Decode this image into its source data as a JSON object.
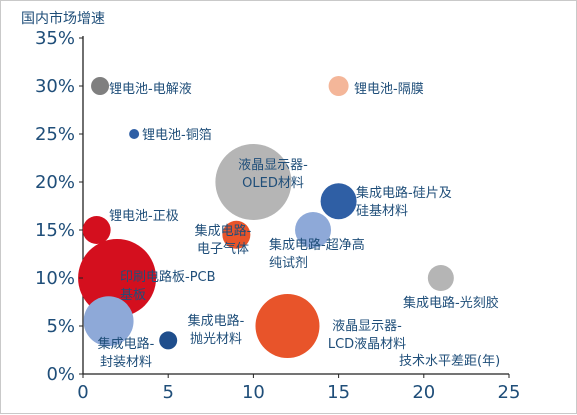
{
  "chart_data": {
    "type": "scatter",
    "title": "",
    "xlabel": "技术水平差距(年)",
    "ylabel": "国内市场增速",
    "xlim": [
      0,
      25
    ],
    "ylim": [
      0,
      35
    ],
    "x_ticks": [
      "0",
      "5",
      "10",
      "15",
      "20",
      "25"
    ],
    "y_ticks": [
      "0%",
      "5%",
      "10%",
      "15%",
      "20%",
      "25%",
      "30%",
      "35%"
    ],
    "grid": false,
    "legend": "none",
    "points": [
      {
        "label": [
          "锂电池-电解液"
        ],
        "x": 1,
        "y": 30,
        "r": 9,
        "color": "#7f7f7f"
      },
      {
        "label": [
          "锂电池-隔膜"
        ],
        "x": 15,
        "y": 30,
        "r": 10,
        "color": "#f4b699"
      },
      {
        "label": [
          "锂电池-铜箔"
        ],
        "x": 3,
        "y": 25,
        "r": 5,
        "color": "#2f5fa5"
      },
      {
        "label": [
          "液晶显示器-",
          "OLED材料"
        ],
        "x": 10,
        "y": 20,
        "r": 38,
        "color": "#b5b5b5"
      },
      {
        "label": [
          "集成电路-硅片及",
          "硅基材料"
        ],
        "x": 15,
        "y": 18,
        "r": 18,
        "color": "#2f5fa5"
      },
      {
        "label": [
          "锂电池-正极"
        ],
        "x": 0.8,
        "y": 15,
        "r": 14,
        "color": "#d40f1e"
      },
      {
        "label": [
          "集成电路-",
          "电子气体"
        ],
        "x": 9,
        "y": 14.5,
        "r": 14,
        "color": "#e8542a"
      },
      {
        "label": [
          "集成电路-超净高",
          "纯试剂"
        ],
        "x": 13.5,
        "y": 15,
        "r": 18,
        "color": "#8ea9d8"
      },
      {
        "label": [
          "印刷电路板-PCB",
          "基板"
        ],
        "x": 2,
        "y": 10,
        "r": 39,
        "color": "#d40f1e"
      },
      {
        "label": [
          "集成电路-光刻胶"
        ],
        "x": 21,
        "y": 10,
        "r": 13,
        "color": "#b5b5b5"
      },
      {
        "label": [
          "集成电路-",
          "封装材料"
        ],
        "x": 1.5,
        "y": 5.5,
        "r": 25,
        "color": "#8ea9d8"
      },
      {
        "label": [
          "集成电路-",
          "抛光材料"
        ],
        "x": 5,
        "y": 3.5,
        "r": 9,
        "color": "#1f4e8c"
      },
      {
        "label": [
          "液晶显示器-",
          "LCD液晶材料"
        ],
        "x": 12,
        "y": 5,
        "r": 32,
        "color": "#e8542a"
      }
    ]
  },
  "colors": {
    "axis_text": "#1f4e79",
    "axis_line": "#222222"
  }
}
